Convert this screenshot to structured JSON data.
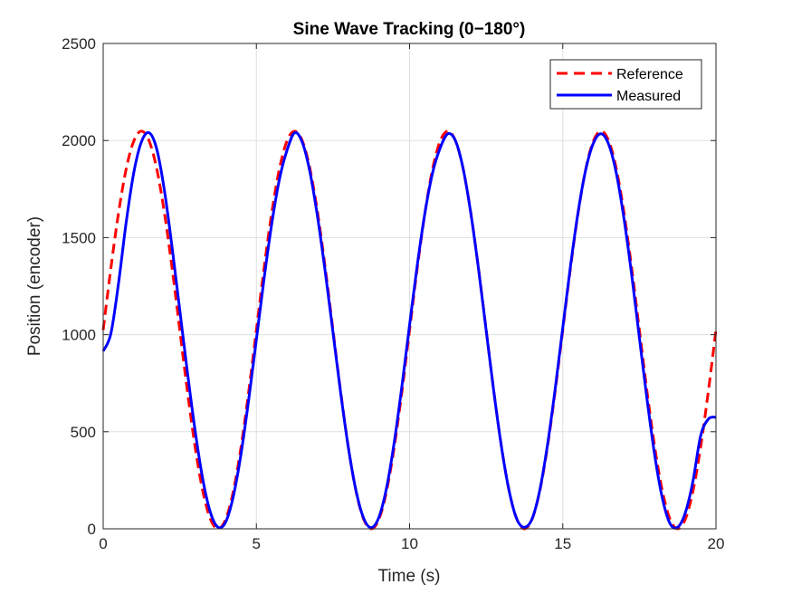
{
  "chart_data": {
    "type": "line",
    "title": "Sine Wave Tracking (0−180°)",
    "xlabel": "Time (s)",
    "ylabel": "Position (encoder)",
    "xlim": [
      0,
      20
    ],
    "ylim": [
      0,
      2500
    ],
    "xticks": [
      0,
      5,
      10,
      15,
      20
    ],
    "yticks": [
      0,
      500,
      1000,
      1500,
      2000,
      2500
    ],
    "grid": true,
    "legend_position": "top-right",
    "x": [
      0,
      0.25,
      0.5,
      0.75,
      1,
      1.25,
      1.5,
      1.75,
      2,
      2.25,
      2.5,
      2.75,
      3,
      3.25,
      3.5,
      3.75,
      4,
      4.25,
      4.5,
      4.75,
      5,
      5.25,
      5.5,
      5.75,
      6,
      6.25,
      6.5,
      6.75,
      7,
      7.25,
      7.5,
      7.75,
      8,
      8.25,
      8.5,
      8.75,
      9,
      9.25,
      9.5,
      9.75,
      10,
      10.25,
      10.5,
      10.75,
      11,
      11.25,
      11.5,
      11.75,
      12,
      12.25,
      12.5,
      12.75,
      13,
      13.25,
      13.5,
      13.75,
      14,
      14.25,
      14.5,
      14.75,
      15,
      15.25,
      15.5,
      15.75,
      16,
      16.25,
      16.5,
      16.75,
      17,
      17.25,
      17.5,
      17.75,
      18,
      18.25,
      18.5,
      18.75,
      19,
      19.25,
      19.5,
      19.75,
      20
    ],
    "series": [
      {
        "name": "Reference",
        "color": "#ff0000",
        "style": "dashed",
        "values": [
          1024,
          1341,
          1626,
          1853,
          1998,
          2048,
          1998,
          1853,
          1626,
          1341,
          1024,
          707,
          422,
          195,
          50,
          0,
          50,
          195,
          422,
          707,
          1024,
          1341,
          1626,
          1853,
          1998,
          2048,
          1998,
          1853,
          1626,
          1341,
          1024,
          707,
          422,
          195,
          50,
          0,
          50,
          195,
          422,
          707,
          1024,
          1341,
          1626,
          1853,
          1998,
          2048,
          1998,
          1853,
          1626,
          1341,
          1024,
          707,
          422,
          195,
          50,
          0,
          50,
          195,
          422,
          707,
          1024,
          1341,
          1626,
          1853,
          1998,
          2048,
          1998,
          1853,
          1626,
          1341,
          1024,
          707,
          422,
          195,
          50,
          0,
          50,
          195,
          422,
          707,
          1024
        ]
      },
      {
        "name": "Measured",
        "color": "#0000ff",
        "style": "solid",
        "values": [
          915,
          1005,
          1264,
          1578,
          1836,
          1994,
          2040,
          1955,
          1741,
          1448,
          1126,
          805,
          506,
          256,
          84,
          8,
          36,
          169,
          387,
          666,
          975,
          1287,
          1570,
          1799,
          1950,
          2040,
          1990,
          1836,
          1603,
          1321,
          1012,
          701,
          420,
          198,
          55,
          6,
          60,
          212,
          446,
          735,
          1050,
          1357,
          1626,
          1833,
          1962,
          2035,
          1998,
          1854,
          1624,
          1339,
          1022,
          706,
          421,
          195,
          50,
          8,
          52,
          199,
          431,
          718,
          1036,
          1351,
          1631,
          1850,
          1987,
          2035,
          1980,
          1830,
          1596,
          1307,
          985,
          667,
          380,
          158,
          27,
          8,
          83,
          246,
          479,
          565,
          575
        ]
      }
    ]
  }
}
